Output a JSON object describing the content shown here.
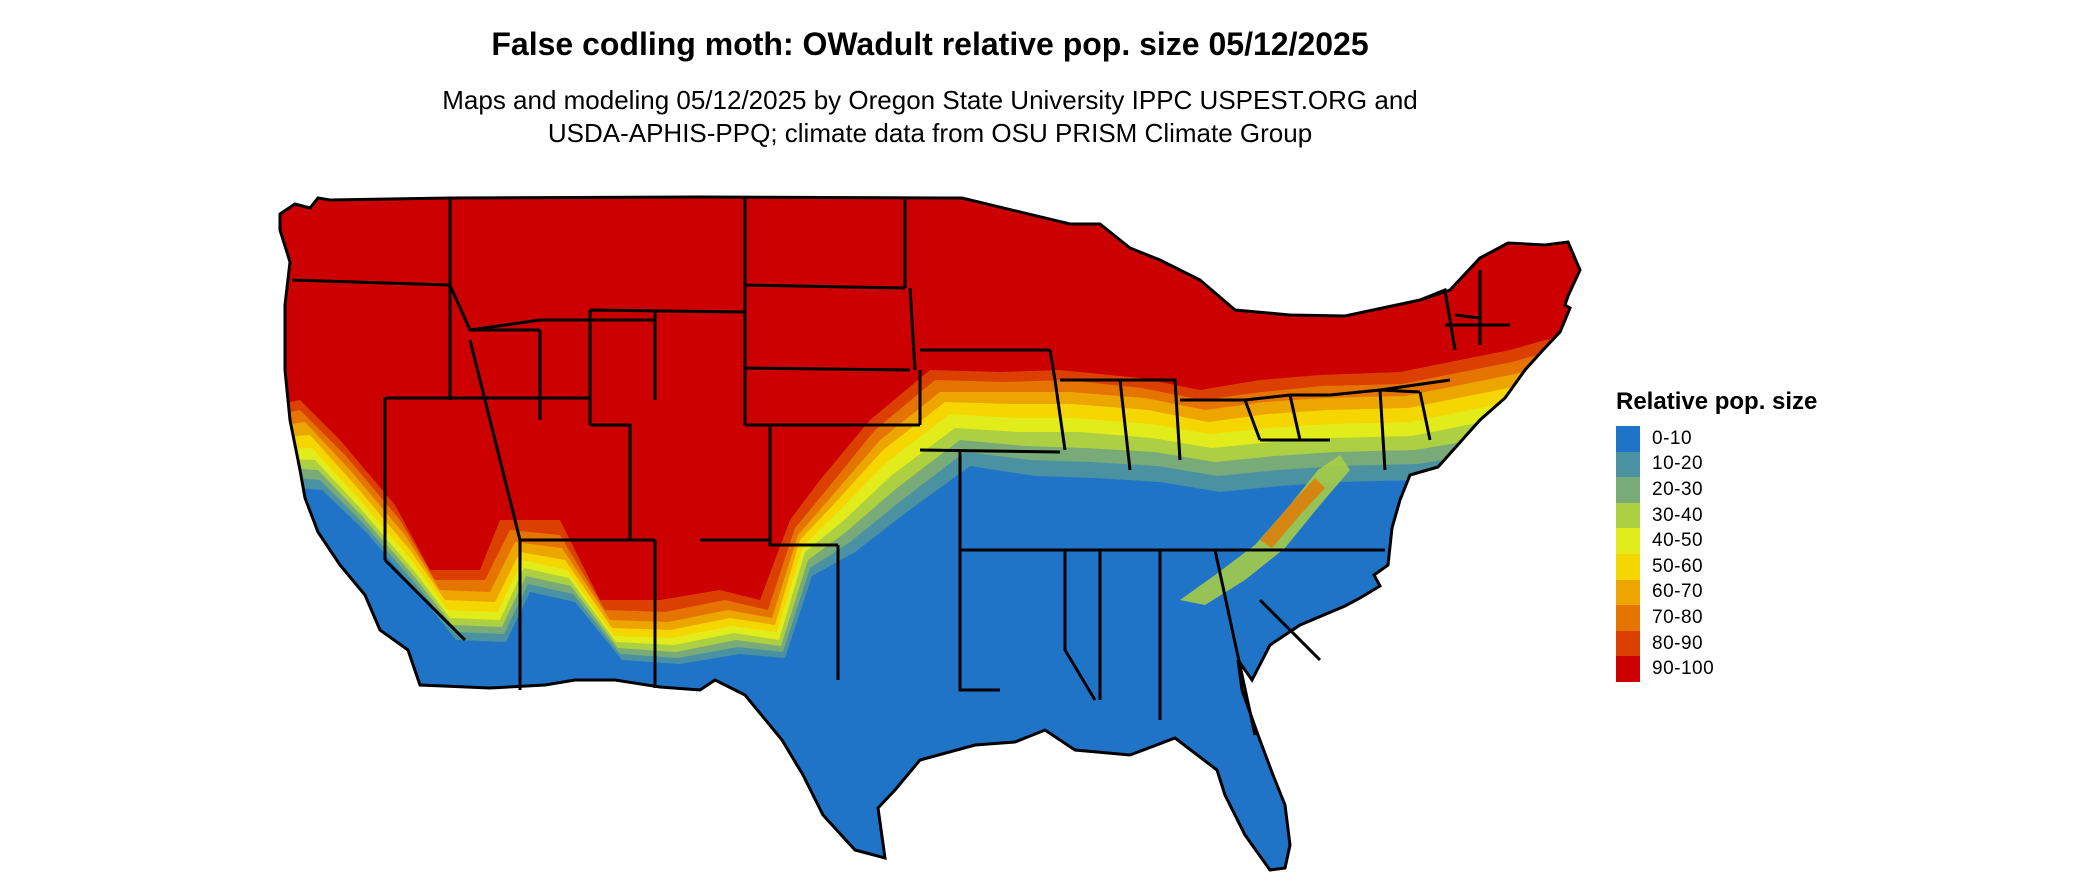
{
  "title": "False codling moth: OWadult relative pop. size 05/12/2025",
  "subtitle": {
    "line1": "Maps and modeling 05/12/2025 by Oregon State University IPPC USPEST.ORG and",
    "line2": "USDA-APHIS-PPQ; climate data from OSU PRISM Climate Group"
  },
  "legend": {
    "title": "Relative pop. size",
    "items": [
      {
        "label": "0-10",
        "color": "#1f74c8"
      },
      {
        "label": "10-20",
        "color": "#4a92a2"
      },
      {
        "label": "20-30",
        "color": "#78ab78"
      },
      {
        "label": "30-40",
        "color": "#add042"
      },
      {
        "label": "40-50",
        "color": "#e2ec1a"
      },
      {
        "label": "50-60",
        "color": "#f6d600"
      },
      {
        "label": "60-70",
        "color": "#eda500"
      },
      {
        "label": "70-80",
        "color": "#e57500"
      },
      {
        "label": "80-90",
        "color": "#dc4000"
      },
      {
        "label": "90-100",
        "color": "#cc0000"
      }
    ]
  },
  "map": {
    "region": "Contiguous United States",
    "high_class_color": "#cc0000",
    "low_class_color": "#1f74c8"
  }
}
